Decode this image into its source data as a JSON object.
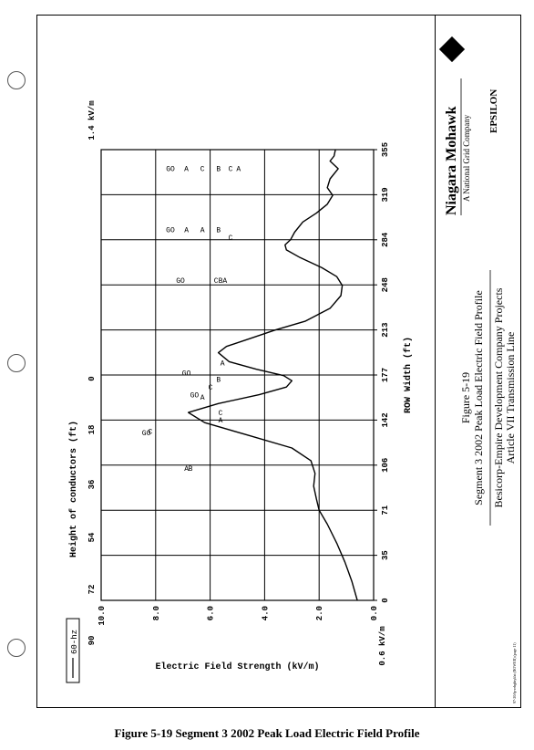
{
  "figure_caption": "Figure 5-19 Segment 3 2002 Peak Load Electric Field Profile",
  "title_block": {
    "company": "Niagara Mohawk",
    "company_sub": "A National Grid Company",
    "consultant": "EPSILON",
    "figure_number": "Figure 5-19",
    "figure_title": "Segment 3 2002 Peak Load Electric Field Profile",
    "project_line1": "Besicorp-Empire Development Company Projects",
    "project_line2": "Article VII Transmission Line",
    "small_print": "97-20/fp-rehghtyl/at (ROWER) (page 11)"
  },
  "chart_data": {
    "type": "line",
    "title": "",
    "legend": [
      "60-hz"
    ],
    "xlabel": "ROW Width (ft)",
    "ylabel": "Electric Field Strength (kV/m)",
    "top_axis_label": "Height of conductors (ft)",
    "x_ticks": [
      "0",
      "35",
      "71",
      "106",
      "142",
      "177",
      "213",
      "248",
      "284",
      "319",
      "355"
    ],
    "y_ticks": [
      "0.0",
      "2.0",
      "4.0",
      "6.0",
      "8.0",
      "10.0"
    ],
    "y_range": [
      0,
      10
    ],
    "x_range": [
      0,
      355
    ],
    "height_ticks": [
      "90",
      "72",
      "54",
      "36",
      "18",
      "0"
    ],
    "left_value_label": "0.6 kV/m",
    "right_value_label": "1.4 kV/m",
    "series": [
      {
        "name": "60-hz",
        "x": [
          0,
          15,
          30,
          45,
          60,
          71,
          80,
          90,
          100,
          110,
          120,
          130,
          140,
          148,
          155,
          162,
          168,
          173,
          177,
          182,
          188,
          195,
          200,
          205,
          213,
          220,
          230,
          240,
          248,
          255,
          262,
          270,
          276,
          280,
          284,
          290,
          298,
          305,
          312,
          319,
          325,
          332,
          340,
          346,
          350,
          355
        ],
        "y": [
          0.6,
          0.8,
          1.05,
          1.35,
          1.7,
          2.0,
          2.1,
          2.2,
          2.15,
          2.3,
          3.0,
          4.6,
          6.2,
          6.8,
          5.7,
          4.2,
          3.2,
          3.0,
          3.3,
          4.3,
          5.3,
          5.7,
          5.4,
          4.7,
          3.6,
          2.5,
          1.6,
          1.2,
          1.15,
          1.35,
          1.9,
          2.7,
          3.2,
          3.25,
          3.05,
          2.9,
          2.6,
          2.1,
          1.7,
          1.5,
          1.7,
          1.6,
          1.3,
          1.6,
          1.45,
          1.4
        ]
      }
    ],
    "conductor_labels": [
      {
        "text": "GO",
        "height": 72,
        "x": 130
      },
      {
        "text": "C",
        "height": 70,
        "x": 131
      },
      {
        "text": "A",
        "height": 52,
        "x": 102
      },
      {
        "text": "B",
        "height": 50,
        "x": 102
      },
      {
        "text": "A",
        "height": 35,
        "x": 140
      },
      {
        "text": "C",
        "height": 35,
        "x": 146
      },
      {
        "text": "GO",
        "height": 52,
        "x": 177
      },
      {
        "text": "GO",
        "height": 48,
        "x": 160
      },
      {
        "text": "A",
        "height": 44,
        "x": 158
      },
      {
        "text": "C",
        "height": 40,
        "x": 166
      },
      {
        "text": "B",
        "height": 36,
        "x": 172
      },
      {
        "text": "A",
        "height": 34,
        "x": 185
      },
      {
        "text": "GO",
        "height": 55,
        "x": 250
      },
      {
        "text": "CBA",
        "height": 35,
        "x": 250
      },
      {
        "text": "GO",
        "height": 60,
        "x": 290
      },
      {
        "text": "A",
        "height": 52,
        "x": 290
      },
      {
        "text": "A",
        "height": 44,
        "x": 290
      },
      {
        "text": "B",
        "height": 36,
        "x": 290
      },
      {
        "text": "C",
        "height": 30,
        "x": 284
      },
      {
        "text": "GO",
        "height": 60,
        "x": 338
      },
      {
        "text": "A",
        "height": 52,
        "x": 338
      },
      {
        "text": "C",
        "height": 44,
        "x": 338
      },
      {
        "text": "B",
        "height": 36,
        "x": 338
      },
      {
        "text": "C",
        "height": 30,
        "x": 338
      },
      {
        "text": "A",
        "height": 26,
        "x": 338
      }
    ]
  }
}
